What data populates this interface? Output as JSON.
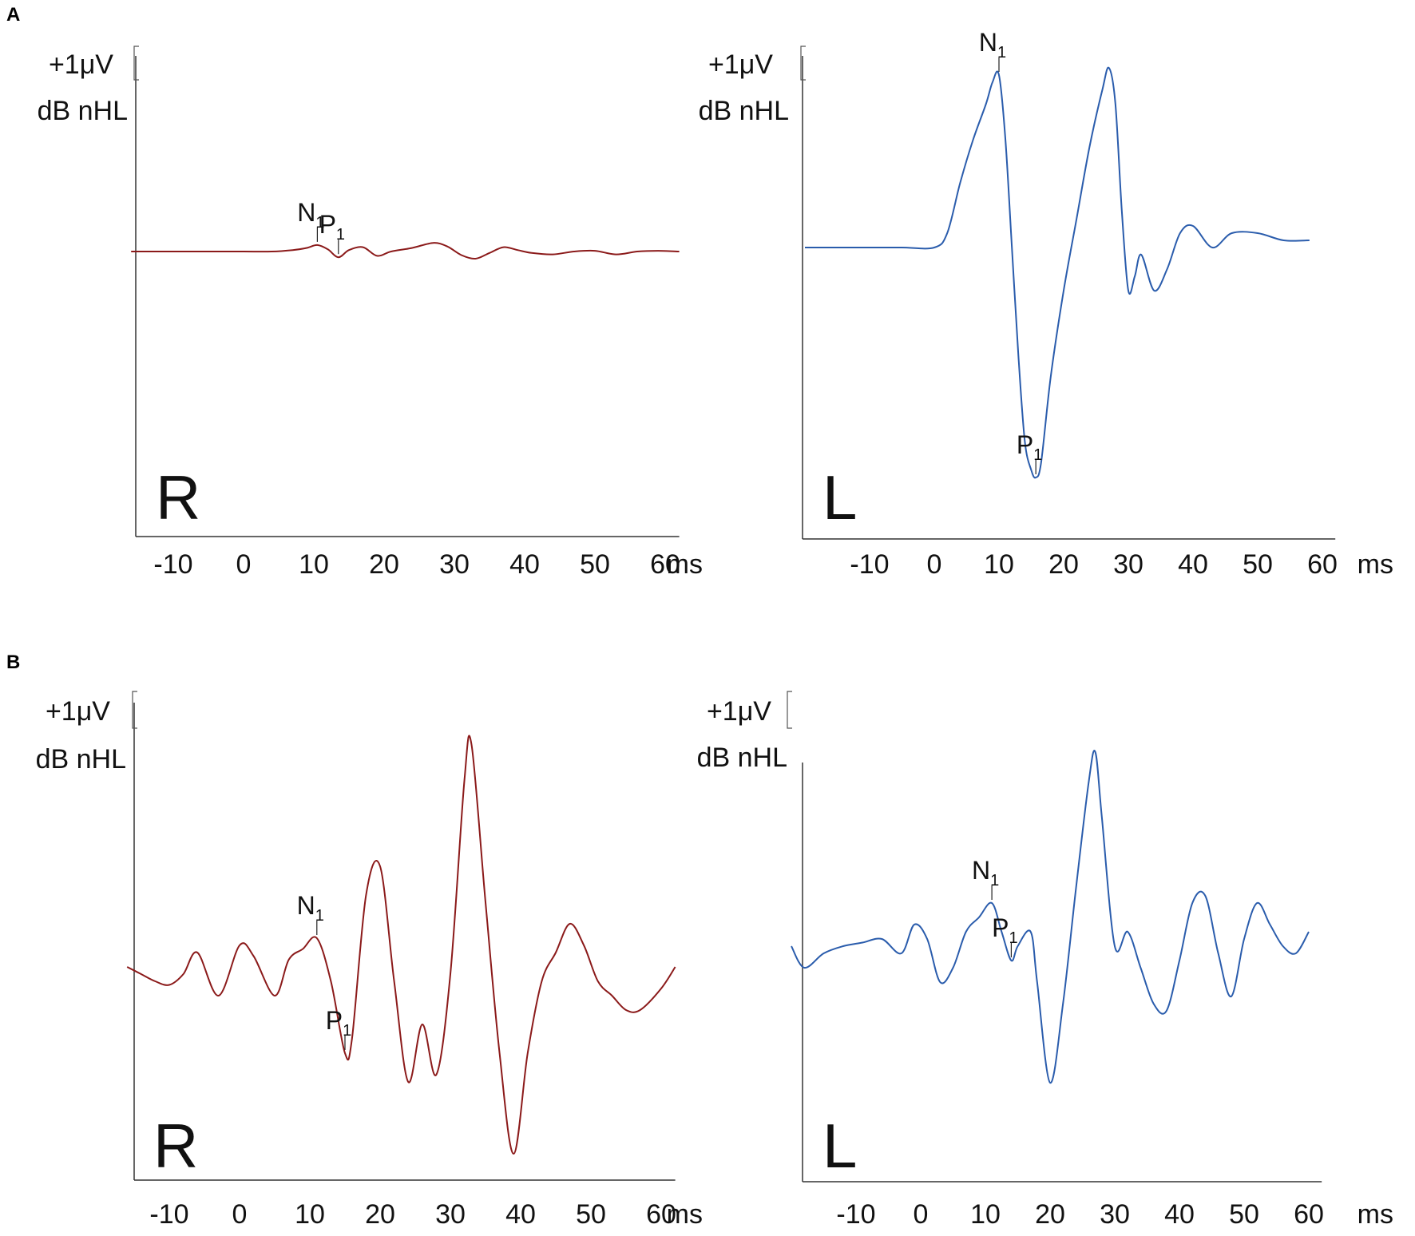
{
  "colors": {
    "right_ear": "#8b1a1a",
    "left_ear": "#2a5cac"
  },
  "panel_letters": [
    "A",
    "B"
  ],
  "chart_data": [
    {
      "id": "A-R",
      "panel": "A",
      "type": "line",
      "ear": "R",
      "scale_label": "+1μV",
      "level_label": "dB nHL",
      "x_unit": "ms",
      "x_ticks": [
        -10,
        0,
        10,
        20,
        30,
        40,
        50,
        60
      ],
      "xlim": [
        -16,
        62
      ],
      "ylim": [
        -4.0,
        2.8
      ],
      "color_key": "right_ear",
      "series": [
        {
          "x": [
            -16,
            -10,
            -5,
            0,
            4,
            7,
            9,
            10.5,
            12,
            13.5,
            15,
            17,
            19,
            21,
            24,
            27,
            29,
            31,
            33,
            35,
            37,
            39,
            41,
            44,
            47,
            50,
            53,
            56,
            59,
            62
          ],
          "y": [
            0,
            0,
            0,
            0,
            0,
            0.02,
            0.05,
            0.09,
            0.03,
            -0.08,
            0.02,
            0.06,
            -0.06,
            0,
            0.05,
            0.12,
            0.07,
            -0.05,
            -0.1,
            -0.02,
            0.06,
            0.02,
            -0.02,
            -0.04,
            0,
            0.01,
            -0.04,
            0,
            0.01,
            0
          ]
        }
      ],
      "peaks": [
        {
          "label": "N",
          "sub": "1",
          "x": 10.5,
          "y": 0.09
        },
        {
          "label": "P",
          "sub": "1",
          "x": 13.5,
          "y": -0.08
        }
      ]
    },
    {
      "id": "A-L",
      "panel": "A",
      "type": "line",
      "ear": "L",
      "scale_label": "+1μV",
      "level_label": "dB nHL",
      "x_unit": "ms",
      "x_ticks": [
        -10,
        0,
        10,
        20,
        30,
        40,
        50,
        60
      ],
      "xlim": [
        -20,
        62
      ],
      "ylim": [
        -4.0,
        2.8
      ],
      "color_key": "left_ear",
      "series": [
        {
          "x": [
            -20,
            -15,
            -10,
            -5,
            0,
            2,
            4,
            6,
            8,
            9,
            10,
            11,
            12,
            13,
            14,
            15,
            15.7,
            16.5,
            18,
            20,
            22,
            24,
            26,
            27,
            28,
            29,
            30,
            31,
            32,
            34,
            36,
            38,
            40,
            43,
            46,
            50,
            54,
            58
          ],
          "y": [
            0,
            0,
            0,
            0,
            0,
            0.2,
            0.9,
            1.5,
            2.0,
            2.3,
            2.4,
            1.5,
            0,
            -1.5,
            -2.7,
            -3.1,
            -3.2,
            -3.0,
            -1.8,
            -0.6,
            0.4,
            1.4,
            2.2,
            2.5,
            2.0,
            0.5,
            -0.6,
            -0.4,
            -0.1,
            -0.6,
            -0.3,
            0.2,
            0.3,
            0,
            0.2,
            0.2,
            0.1,
            0.1
          ]
        }
      ],
      "peaks": [
        {
          "label": "N",
          "sub": "1",
          "x": 10,
          "y": 2.4
        },
        {
          "label": "P",
          "sub": "1",
          "x": 15.7,
          "y": -3.2
        }
      ]
    },
    {
      "id": "B-R",
      "panel": "B",
      "type": "line",
      "ear": "R",
      "scale_label": "+1μV",
      "level_label": "dB nHL",
      "x_unit": "ms",
      "x_ticks": [
        -10,
        0,
        10,
        20,
        30,
        40,
        50,
        60
      ],
      "xlim": [
        -16,
        62
      ],
      "ylim": [
        -3.2,
        3.7
      ],
      "color_key": "right_ear",
      "series": [
        {
          "x": [
            -16,
            -14,
            -12,
            -10,
            -8,
            -6,
            -3,
            0,
            2,
            5,
            7,
            9,
            11,
            13,
            15,
            16,
            18,
            20,
            22,
            24,
            26,
            28,
            30,
            32,
            33,
            35,
            37,
            39,
            41,
            43,
            45,
            47,
            49,
            51,
            53,
            55,
            57,
            60,
            62
          ],
          "y": [
            0,
            -0.1,
            -0.2,
            -0.25,
            -0.1,
            0.2,
            -0.4,
            0.3,
            0.15,
            -0.4,
            0.1,
            0.25,
            0.4,
            -0.2,
            -1.2,
            -1.0,
            1.0,
            1.4,
            -0.2,
            -1.6,
            -0.8,
            -1.5,
            -0.1,
            2.6,
            3.1,
            0.9,
            -1.2,
            -2.6,
            -1.2,
            -0.2,
            0.2,
            0.6,
            0.3,
            -0.2,
            -0.4,
            -0.6,
            -0.6,
            -0.3,
            0
          ]
        }
      ],
      "peaks": [
        {
          "label": "N",
          "sub": "1",
          "x": 11,
          "y": 0.4
        },
        {
          "label": "P",
          "sub": "1",
          "x": 15,
          "y": -1.2
        }
      ]
    },
    {
      "id": "B-L",
      "panel": "B",
      "type": "line",
      "ear": "L",
      "scale_label": "+1μV",
      "level_label": "dB nHL",
      "x_unit": "ms",
      "x_ticks": [
        -10,
        0,
        10,
        20,
        30,
        40,
        50,
        60
      ],
      "xlim": [
        -20,
        62
      ],
      "ylim": [
        -3.2,
        3.7
      ],
      "color_key": "left_ear",
      "series": [
        {
          "x": [
            -20,
            -18,
            -15,
            -12,
            -9,
            -6,
            -3,
            -1,
            1,
            3,
            5,
            7,
            9,
            11,
            12.5,
            14,
            15,
            17,
            18,
            20,
            22,
            24,
            26,
            27,
            28,
            30,
            32,
            34,
            36,
            38,
            40,
            42,
            44,
            46,
            48,
            50,
            52,
            54,
            56,
            58,
            60
          ],
          "y": [
            0,
            -0.3,
            -0.1,
            0,
            0.05,
            0.1,
            -0.1,
            0.3,
            0.1,
            -0.5,
            -0.3,
            0.2,
            0.4,
            0.6,
            0.2,
            -0.2,
            0,
            0.2,
            -0.5,
            -1.9,
            -0.8,
            0.8,
            2.3,
            2.7,
            1.8,
            0,
            0.2,
            -0.3,
            -0.8,
            -0.9,
            -0.2,
            0.6,
            0.7,
            -0.1,
            -0.7,
            0.1,
            0.6,
            0.3,
            0,
            -0.1,
            0.2
          ]
        }
      ],
      "peaks": [
        {
          "label": "N",
          "sub": "1",
          "x": 11,
          "y": 0.6
        },
        {
          "label": "P",
          "sub": "1",
          "x": 14,
          "y": -0.2
        }
      ]
    }
  ]
}
